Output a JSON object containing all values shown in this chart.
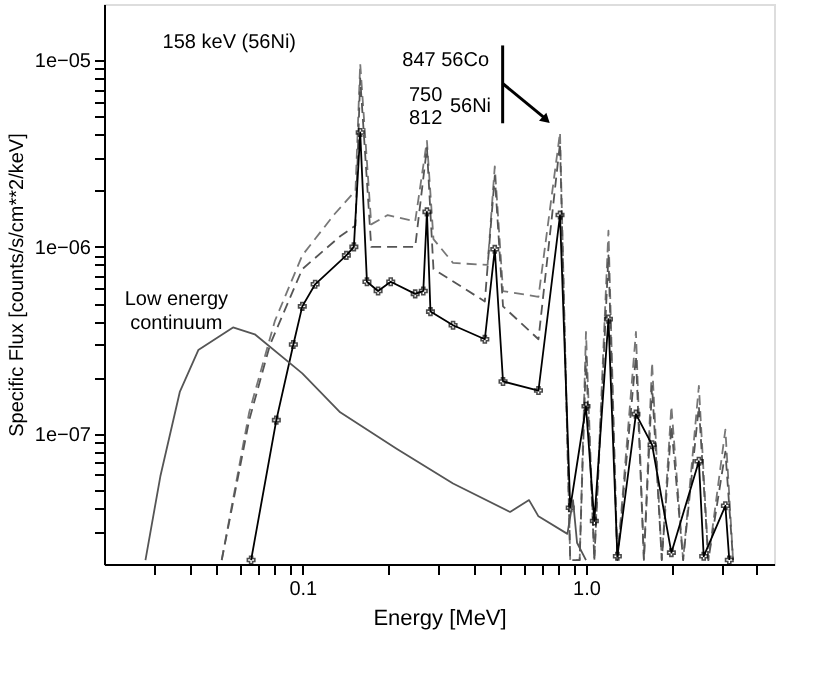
{
  "chart_data": {
    "type": "line",
    "xlabel": "Energy [MeV]",
    "ylabel": "Specific Flux [counts/s/cm**2/keV]",
    "log": "xy",
    "grid": false,
    "xlim": [
      0.02,
      4.6
    ],
    "ylim": [
      2e-08,
      2e-05
    ],
    "xticks": [
      {
        "value": 0.03,
        "label": null
      },
      {
        "value": 0.04,
        "label": null
      },
      {
        "value": 0.05,
        "label": null
      },
      {
        "value": 0.06,
        "label": null
      },
      {
        "value": 0.07,
        "label": null
      },
      {
        "value": 0.08,
        "label": null
      },
      {
        "value": 0.09,
        "label": null
      },
      {
        "value": 0.1,
        "label": "0.1"
      },
      {
        "value": 0.2,
        "label": null
      },
      {
        "value": 0.3,
        "label": null
      },
      {
        "value": 0.4,
        "label": null
      },
      {
        "value": 0.5,
        "label": null
      },
      {
        "value": 0.6,
        "label": null
      },
      {
        "value": 0.7,
        "label": null
      },
      {
        "value": 0.8,
        "label": null
      },
      {
        "value": 0.9,
        "label": null
      },
      {
        "value": 1,
        "label": "1.0"
      },
      {
        "value": 2,
        "label": null
      },
      {
        "value": 3,
        "label": null
      },
      {
        "value": 4,
        "label": null
      }
    ],
    "yticks": [
      {
        "value": 3e-08,
        "label": null
      },
      {
        "value": 4e-08,
        "label": null
      },
      {
        "value": 5e-08,
        "label": null
      },
      {
        "value": 6e-08,
        "label": null
      },
      {
        "value": 7e-08,
        "label": null
      },
      {
        "value": 8e-08,
        "label": null
      },
      {
        "value": 9e-08,
        "label": null
      },
      {
        "value": 1e-07,
        "label": "1e−07"
      },
      {
        "value": 2e-07,
        "label": null
      },
      {
        "value": 3e-07,
        "label": null
      },
      {
        "value": 4e-07,
        "label": null
      },
      {
        "value": 5e-07,
        "label": null
      },
      {
        "value": 6e-07,
        "label": null
      },
      {
        "value": 7e-07,
        "label": null
      },
      {
        "value": 8e-07,
        "label": null
      },
      {
        "value": 9e-07,
        "label": null
      },
      {
        "value": 1e-06,
        "label": "1e−06"
      },
      {
        "value": 2e-06,
        "label": null
      },
      {
        "value": 3e-06,
        "label": null
      },
      {
        "value": 4e-06,
        "label": null
      },
      {
        "value": 5e-06,
        "label": null
      },
      {
        "value": 6e-06,
        "label": null
      },
      {
        "value": 7e-06,
        "label": null
      },
      {
        "value": 8e-06,
        "label": null
      },
      {
        "value": 9e-06,
        "label": null
      },
      {
        "value": 1e-05,
        "label": "1e−05"
      }
    ],
    "annotations": [
      "158 keV (56Ni)",
      "847 56Co",
      "750",
      "812",
      "56Ni",
      "Low energy\ncontinuum"
    ],
    "series": [
      {
        "color": "#777777",
        "line_style": "dashed",
        "marker": "none",
        "x": [
          0.052,
          0.065,
          0.08,
          0.1,
          0.13,
          0.154,
          0.16,
          0.175,
          0.2,
          0.25,
          0.275,
          0.29,
          0.34,
          0.45,
          0.477,
          0.51,
          0.68,
          0.81,
          0.88,
          0.95,
          1.0,
          1.07,
          1.2,
          1.29,
          1.5,
          1.6,
          1.71,
          1.85,
          2.0,
          2.2,
          2.5,
          2.7,
          3.1,
          3.3
        ],
        "values": [
          2.1e-08,
          1.3e-07,
          4e-07,
          9e-07,
          1.5e-06,
          2e-06,
          9.6e-06,
          1.32e-06,
          1.48e-06,
          1.37e-06,
          3.7e-06,
          1.1e-06,
          8.2e-07,
          8e-07,
          2.7e-06,
          5.8e-07,
          5.4e-07,
          4.1e-06,
          2.1e-08,
          2.1e-08,
          3.5e-07,
          2.1e-08,
          1.22e-06,
          2.1e-08,
          3.5e-07,
          2.1e-08,
          2.4e-07,
          2.1e-08,
          1.4e-07,
          2.1e-08,
          1.8e-07,
          2.1e-08,
          1.05e-07,
          2.1e-08
        ]
      },
      {
        "color": "#555555",
        "line_style": "dashed",
        "marker": "none",
        "x": [
          0.052,
          0.065,
          0.077,
          0.1,
          0.136,
          0.154,
          0.16,
          0.175,
          0.2,
          0.25,
          0.275,
          0.29,
          0.44,
          0.477,
          0.51,
          0.68,
          0.81,
          0.88,
          0.95,
          1.0,
          1.07,
          1.2,
          1.29,
          1.5,
          1.6,
          1.71,
          1.85,
          2.0,
          2.2,
          2.5,
          2.7,
          3.1,
          3.3
        ],
        "values": [
          2.1e-08,
          1.18e-07,
          3e-07,
          7.6e-07,
          1.14e-06,
          1.3e-06,
          8e-06,
          1e-06,
          1e-06,
          1e-06,
          3.4e-06,
          7.6e-07,
          5.1e-07,
          2.4e-06,
          4.8e-07,
          3.2e-07,
          3.6e-06,
          2.1e-08,
          2.1e-08,
          2.6e-07,
          2.1e-08,
          9e-07,
          2.1e-08,
          2.6e-07,
          2.1e-08,
          1.8e-07,
          2.1e-08,
          1.1e-07,
          2.1e-08,
          1.4e-07,
          2.1e-08,
          8e-08,
          2.1e-08
        ]
      },
      {
        "color": "#000000",
        "line_style": "solid",
        "marker": "cross",
        "x": [
          0.066,
          0.081,
          0.093,
          0.1,
          0.111,
          0.143,
          0.152,
          0.16,
          0.169,
          0.185,
          0.205,
          0.25,
          0.267,
          0.275,
          0.283,
          0.34,
          0.44,
          0.477,
          0.51,
          0.68,
          0.81,
          0.88,
          1.0,
          1.07,
          1.2,
          1.29,
          1.5,
          1.71,
          2.0,
          2.5,
          2.6,
          3.1,
          3.2
        ],
        "values": [
          2.1e-08,
          1.18e-07,
          3e-07,
          4.8e-07,
          6.3e-07,
          9e-07,
          1e-06,
          4.1e-06,
          6.5e-07,
          5.8e-07,
          6.5e-07,
          5.6e-07,
          5.8e-07,
          1.54e-06,
          4.5e-07,
          3.8e-07,
          3.2e-07,
          9.7e-07,
          1.9e-07,
          1.7e-07,
          1.48e-06,
          4e-08,
          1.4e-07,
          3.4e-08,
          4.1e-07,
          2.2e-08,
          1.27e-07,
          8.7e-08,
          2.3e-08,
          7.1e-08,
          2.2e-08,
          4.1e-08,
          2.1e-08
        ]
      },
      {
        "color": "#555555",
        "line_style": "solid",
        "marker": "none",
        "x": [
          0.028,
          0.0316,
          0.037,
          0.043,
          0.057,
          0.068,
          0.1,
          0.136,
          0.215,
          0.34,
          0.54,
          0.63,
          0.68,
          0.86,
          0.9,
          0.93,
          1.0
        ],
        "values": [
          2.1e-08,
          5.9e-08,
          1.67e-07,
          2.8e-07,
          3.7e-07,
          3.4e-07,
          2.1e-07,
          1.3e-07,
          8.3e-08,
          5.4e-08,
          3.8e-08,
          4.4e-08,
          3.6e-08,
          2.9e-08,
          4.4e-08,
          2.6e-08,
          2.1e-08
        ]
      }
    ]
  }
}
